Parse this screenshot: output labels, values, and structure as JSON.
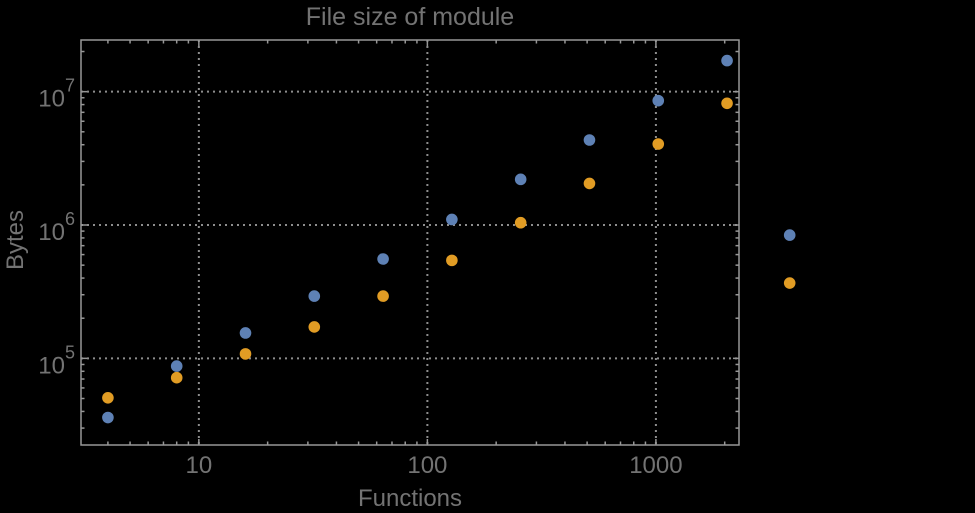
{
  "chart_data": {
    "type": "scatter",
    "title": "File size of module",
    "xlabel": "Functions",
    "ylabel": "Bytes",
    "x_scale": "log",
    "y_scale": "log",
    "xlim": [
      3.05,
      2310
    ],
    "ylim": [
      22400,
      24400000
    ],
    "grid": "dotted lines at major ticks on both axes",
    "legend": "none",
    "frame": "full frame with inward ticks mirrored on all four edges",
    "points_clipped_to_frame": false,
    "x_major_ticks": [
      10,
      100,
      1000
    ],
    "x_tick_labels": [
      "10",
      "100",
      "1000"
    ],
    "y_major_ticks": [
      100000,
      1000000,
      10000000
    ],
    "y_tick_labels": [
      {
        "base": "10",
        "exp": "5"
      },
      {
        "base": "10",
        "exp": "6"
      },
      {
        "base": "10",
        "exp": "7"
      }
    ],
    "x": [
      4,
      8,
      16,
      32,
      64,
      128,
      256,
      512,
      1024,
      2048,
      3850
    ],
    "series": [
      {
        "name": "series-1-blue",
        "color": "#5E81B5",
        "values": [
          36000,
          87500,
          155000,
          293000,
          556000,
          1100000,
          2200000,
          4340000,
          8560000,
          17100000,
          840000
        ]
      },
      {
        "name": "series-2-orange",
        "color": "#E19C24",
        "values": [
          50600,
          71600,
          108000,
          172000,
          293000,
          543000,
          1040000,
          2050000,
          4050000,
          8180000,
          367000
        ]
      }
    ]
  },
  "colors": {
    "background": "#000000",
    "text": "#737373",
    "frame": "#979797",
    "tick": "#979797",
    "gridline": "#8d8d8d"
  }
}
